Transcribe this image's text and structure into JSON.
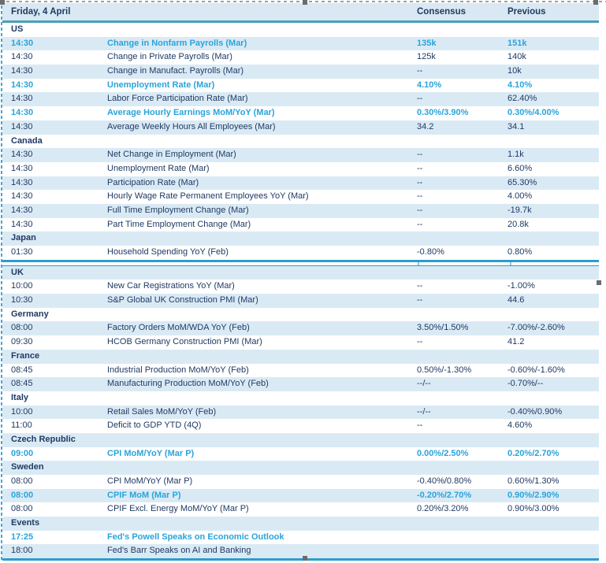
{
  "header": {
    "date_label": "Friday, 4 April",
    "consensus_label": "Consensus",
    "previous_label": "Previous"
  },
  "colors": {
    "text": "#1f3a63",
    "highlight": "#29a4db",
    "row_shade": "#daeaf5",
    "header_bg": "#d9e8f2",
    "teal_line": "#4a9fb6",
    "blue_line": "#2b9ccf"
  },
  "tables": [
    {
      "rows": [
        {
          "type": "section",
          "label": "US"
        },
        {
          "type": "data",
          "time": "14:30",
          "event": "Change in Nonfarm Payrolls (Mar)",
          "consensus": "135k",
          "previous": "151k",
          "highlight": true
        },
        {
          "type": "data",
          "time": "14:30",
          "event": "Change in Private Payrolls (Mar)",
          "consensus": "125k",
          "previous": "140k",
          "highlight": false
        },
        {
          "type": "data",
          "time": "14:30",
          "event": "Change in Manufact. Payrolls (Mar)",
          "consensus": "--",
          "previous": "10k",
          "highlight": false
        },
        {
          "type": "data",
          "time": "14:30",
          "event": "Unemployment Rate (Mar)",
          "consensus": "4.10%",
          "previous": "4.10%",
          "highlight": true
        },
        {
          "type": "data",
          "time": "14:30",
          "event": "Labor Force Participation Rate (Mar)",
          "consensus": "--",
          "previous": "62.40%",
          "highlight": false
        },
        {
          "type": "data",
          "time": "14:30",
          "event": "Average Hourly Earnings MoM/YoY (Mar)",
          "consensus": "0.30%/3.90%",
          "previous": "0.30%/4.00%",
          "highlight": true
        },
        {
          "type": "data",
          "time": "14:30",
          "event": "Average Weekly Hours All Employees (Mar)",
          "consensus": "34.2",
          "previous": "34.1",
          "highlight": false
        },
        {
          "type": "section",
          "label": "Canada"
        },
        {
          "type": "data",
          "time": "14:30",
          "event": "Net Change in Employment (Mar)",
          "consensus": "--",
          "previous": "1.1k",
          "highlight": false
        },
        {
          "type": "data",
          "time": "14:30",
          "event": "Unemployment Rate (Mar)",
          "consensus": "--",
          "previous": "6.60%",
          "highlight": false
        },
        {
          "type": "data",
          "time": "14:30",
          "event": "Participation Rate (Mar)",
          "consensus": "--",
          "previous": "65.30%",
          "highlight": false
        },
        {
          "type": "data",
          "time": "14:30",
          "event": "Hourly Wage Rate Permanent Employees YoY (Mar)",
          "consensus": "--",
          "previous": "4.00%",
          "highlight": false
        },
        {
          "type": "data",
          "time": "14:30",
          "event": "Full Time Employment Change (Mar)",
          "consensus": "--",
          "previous": "-19.7k",
          "highlight": false
        },
        {
          "type": "data",
          "time": "14:30",
          "event": "Part Time Employment Change (Mar)",
          "consensus": "--",
          "previous": "20.8k",
          "highlight": false
        },
        {
          "type": "section",
          "label": "Japan"
        },
        {
          "type": "data",
          "time": "01:30",
          "event": "Household Spending YoY (Feb)",
          "consensus": "-0.80%",
          "previous": "0.80%",
          "highlight": false
        }
      ]
    },
    {
      "rows": [
        {
          "type": "section",
          "label": "UK"
        },
        {
          "type": "data",
          "time": "10:00",
          "event": "New Car Registrations YoY (Mar)",
          "consensus": "--",
          "previous": "-1.00%",
          "highlight": false
        },
        {
          "type": "data",
          "time": "10:30",
          "event": "S&P Global UK Construction PMI (Mar)",
          "consensus": "--",
          "previous": "44.6",
          "highlight": false
        },
        {
          "type": "section",
          "label": "Germany"
        },
        {
          "type": "data",
          "time": "08:00",
          "event": "Factory Orders MoM/WDA YoY (Feb)",
          "consensus": "3.50%/1.50%",
          "previous": "-7.00%/-2.60%",
          "highlight": false
        },
        {
          "type": "data",
          "time": "09:30",
          "event": "HCOB Germany Construction PMI (Mar)",
          "consensus": "--",
          "previous": "41.2",
          "highlight": false
        },
        {
          "type": "section",
          "label": "France"
        },
        {
          "type": "data",
          "time": "08:45",
          "event": "Industrial Production MoM/YoY (Feb)",
          "consensus": "0.50%/-1.30%",
          "previous": "-0.60%/-1.60%",
          "highlight": false
        },
        {
          "type": "data",
          "time": "08:45",
          "event": "Manufacturing Production MoM/YoY (Feb)",
          "consensus": "--/--",
          "previous": "-0.70%/--",
          "highlight": false
        },
        {
          "type": "section",
          "label": "Italy"
        },
        {
          "type": "data",
          "time": "10:00",
          "event": "Retail Sales MoM/YoY (Feb)",
          "consensus": "--/--",
          "previous": "-0.40%/0.90%",
          "highlight": false
        },
        {
          "type": "data",
          "time": "11:00",
          "event": "Deficit to GDP YTD (4Q)",
          "consensus": "--",
          "previous": "4.60%",
          "highlight": false
        },
        {
          "type": "section",
          "label": "Czech Republic"
        },
        {
          "type": "data",
          "time": "09:00",
          "event": "CPI MoM/YoY (Mar P)",
          "consensus": "0.00%/2.50%",
          "previous": "0.20%/2.70%",
          "highlight": true
        },
        {
          "type": "section",
          "label": "Sweden"
        },
        {
          "type": "data",
          "time": "08:00",
          "event": "CPI MoM/YoY (Mar P)",
          "consensus": "-0.40%/0.80%",
          "previous": "0.60%/1.30%",
          "highlight": false
        },
        {
          "type": "data",
          "time": "08:00",
          "event": "CPIF MoM (Mar P)",
          "consensus": "-0.20%/2.70%",
          "previous": "0.90%/2.90%",
          "highlight": true
        },
        {
          "type": "data",
          "time": "08:00",
          "event": "CPIF Excl. Energy MoM/YoY (Mar P)",
          "consensus": "0.20%/3.20%",
          "previous": "0.90%/3.00%",
          "highlight": false
        },
        {
          "type": "section",
          "label": "Events"
        },
        {
          "type": "data",
          "time": "17:25",
          "event": "Fed's Powell Speaks on Economic Outlook",
          "consensus": "",
          "previous": "",
          "highlight": true
        },
        {
          "type": "data",
          "time": "18:00",
          "event": "Fed's Barr Speaks on AI and Banking",
          "consensus": "",
          "previous": "",
          "highlight": false
        }
      ]
    }
  ]
}
